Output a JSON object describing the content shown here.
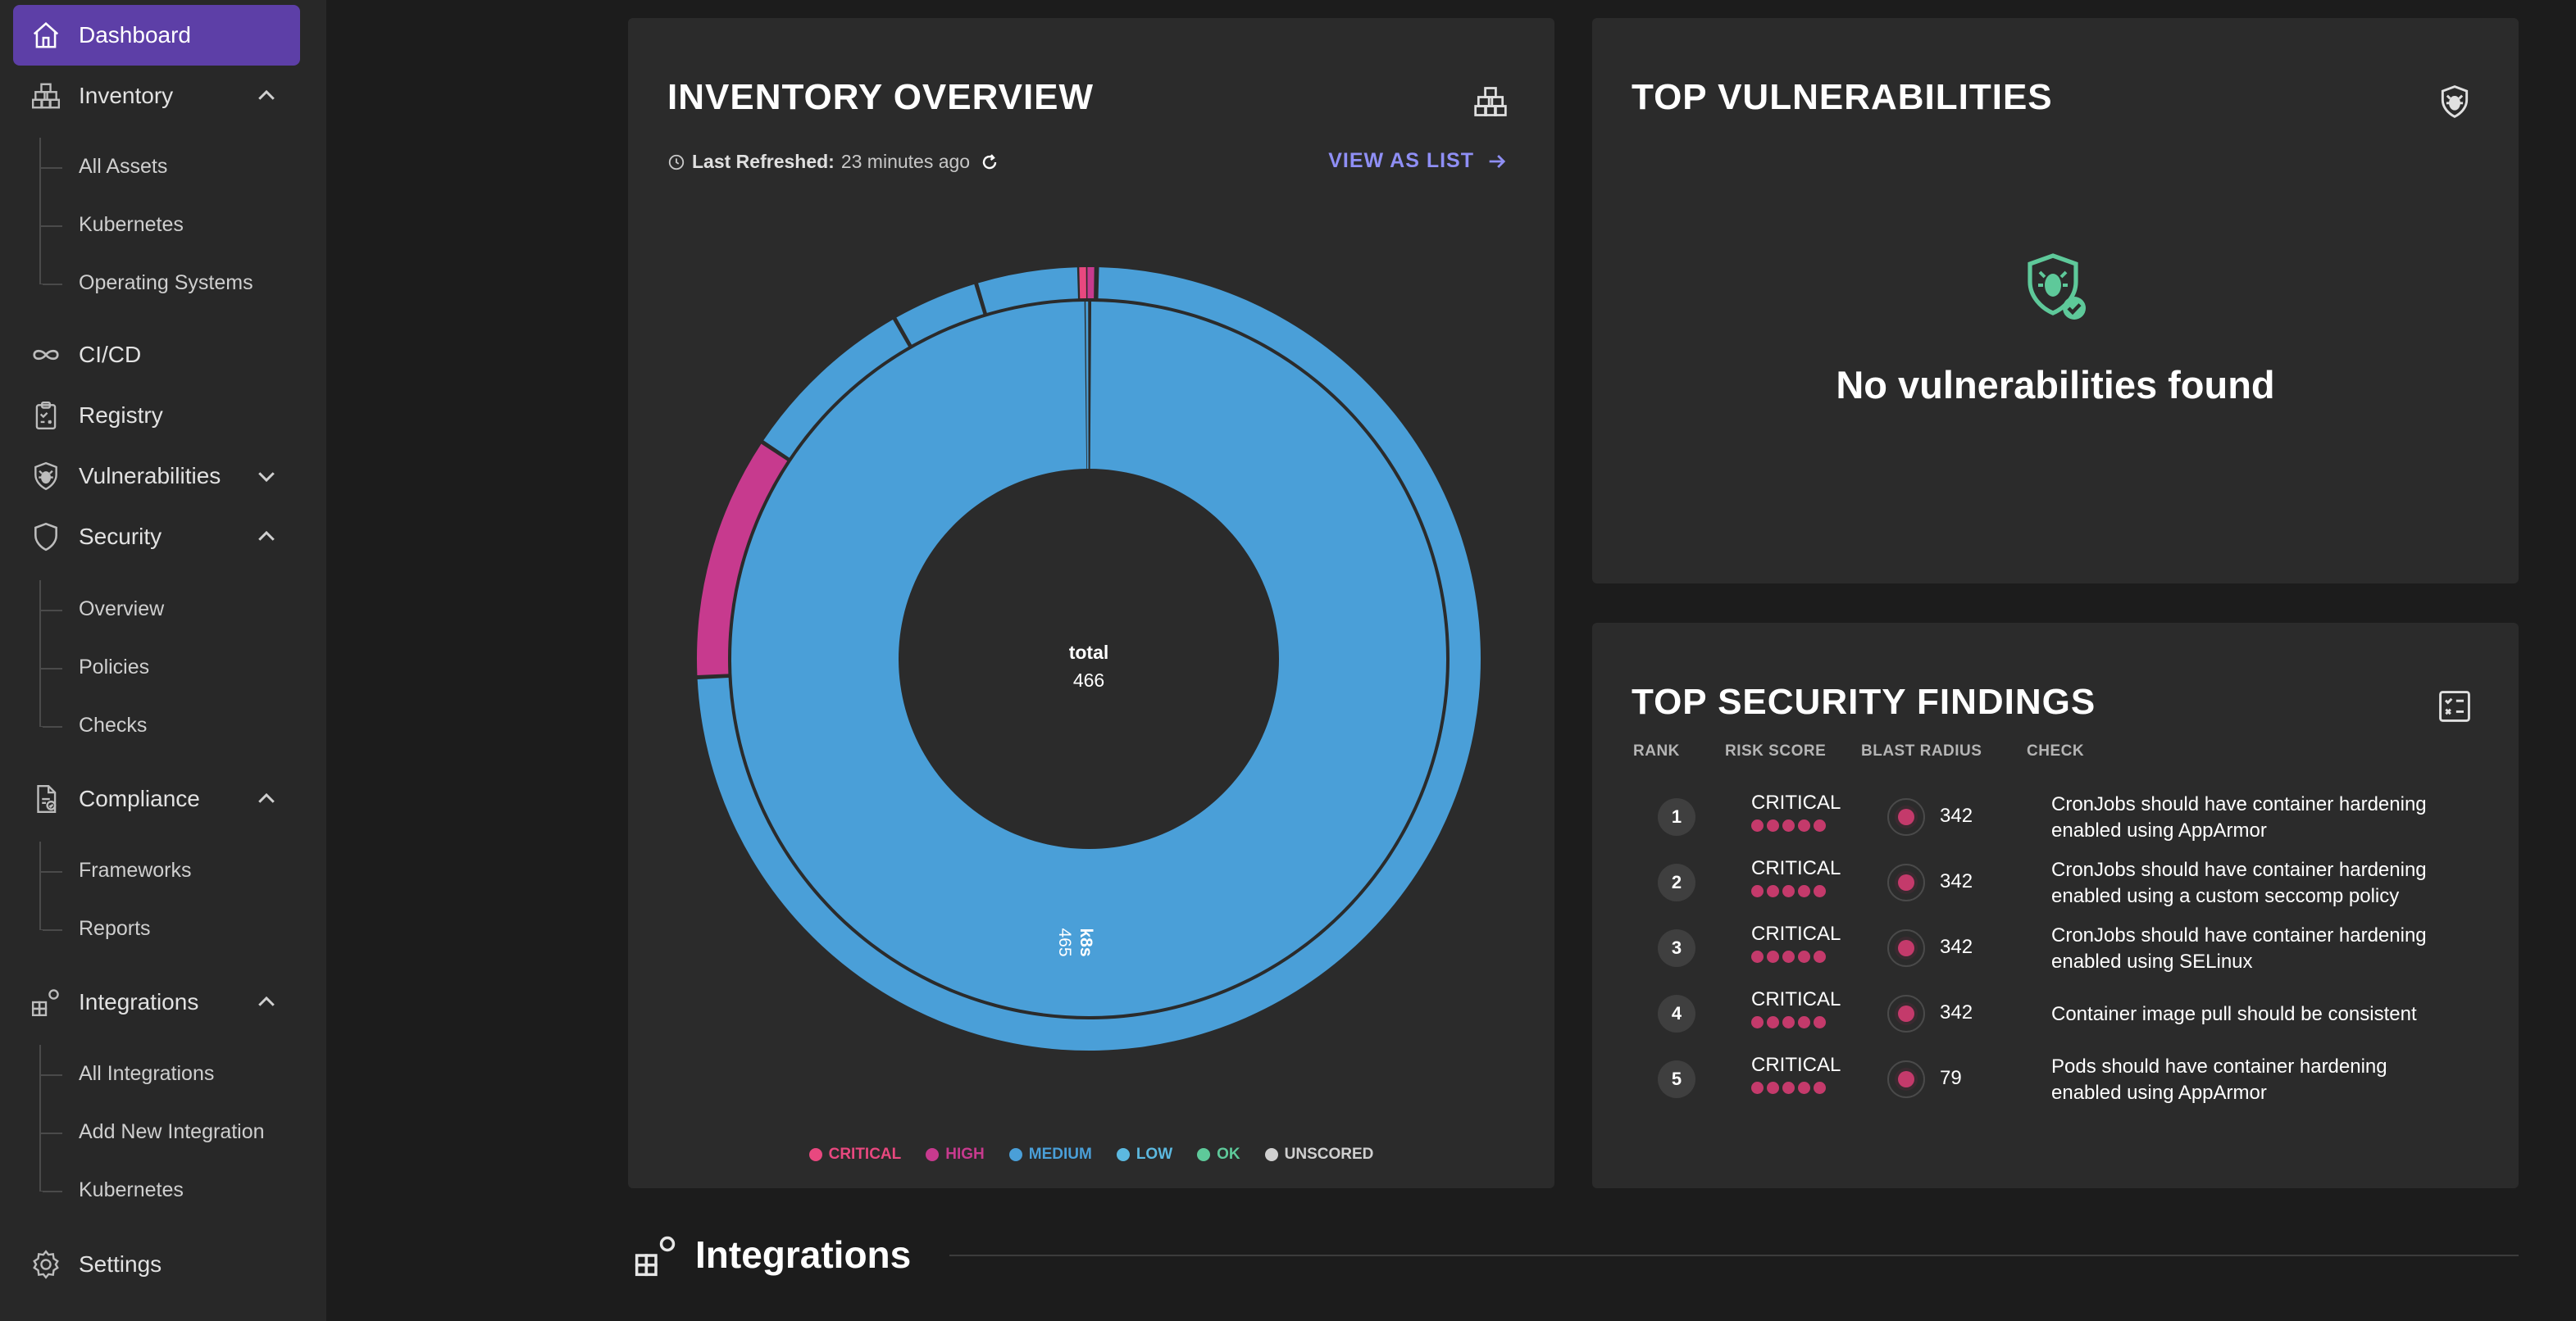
{
  "sidebar": {
    "dashboard": "Dashboard",
    "inventory": "Inventory",
    "inventory_items": [
      "All Assets",
      "Kubernetes",
      "Operating Systems"
    ],
    "cicd": "CI/CD",
    "registry": "Registry",
    "vulnerabilities": "Vulnerabilities",
    "security": "Security",
    "security_items": [
      "Overview",
      "Policies",
      "Checks"
    ],
    "compliance": "Compliance",
    "compliance_items": [
      "Frameworks",
      "Reports"
    ],
    "integrations": "Integrations",
    "integrations_items": [
      "All Integrations",
      "Add New Integration",
      "Kubernetes"
    ],
    "settings": "Settings",
    "accent_color": "#5d3fa7"
  },
  "inventory_overview": {
    "title": "INVENTORY OVERVIEW",
    "refreshed_label": "Last Refreshed:",
    "refreshed_value": "23 minutes ago",
    "view_as_list": "VIEW AS LIST",
    "center_label": "total",
    "center_value": "466",
    "segment_label": "k8s",
    "segment_value": "465",
    "legend": [
      {
        "label": "CRITICAL",
        "color": "#e8487f"
      },
      {
        "label": "HIGH",
        "color": "#c73a8e"
      },
      {
        "label": "MEDIUM",
        "color": "#4a9fd8"
      },
      {
        "label": "LOW",
        "color": "#5cb9e0"
      },
      {
        "label": "OK",
        "color": "#5ec99a"
      },
      {
        "label": "UNSCORED",
        "color": "#d0d0d0"
      }
    ]
  },
  "top_vulnerabilities": {
    "title": "TOP VULNERABILITIES",
    "empty_text": "No vulnerabilities found"
  },
  "top_security_findings": {
    "title": "TOP SECURITY FINDINGS",
    "headers": {
      "rank": "RANK",
      "risk": "RISK SCORE",
      "blast": "BLAST RADIUS",
      "check": "CHECK"
    },
    "rows": [
      {
        "rank": "1",
        "risk": "CRITICAL",
        "blast": "342",
        "check": "CronJobs should have container hardening enabled using AppArmor"
      },
      {
        "rank": "2",
        "risk": "CRITICAL",
        "blast": "342",
        "check": "CronJobs should have container hardening enabled using a custom seccomp policy"
      },
      {
        "rank": "3",
        "risk": "CRITICAL",
        "blast": "342",
        "check": "CronJobs should have container hardening enabled using SELinux"
      },
      {
        "rank": "4",
        "risk": "CRITICAL",
        "blast": "342",
        "check": "Container image pull should be consistent"
      },
      {
        "rank": "5",
        "risk": "CRITICAL",
        "blast": "79",
        "check": "Pods should have container hardening enabled using AppArmor"
      }
    ]
  },
  "integrations_section": {
    "title": "Integrations"
  }
}
